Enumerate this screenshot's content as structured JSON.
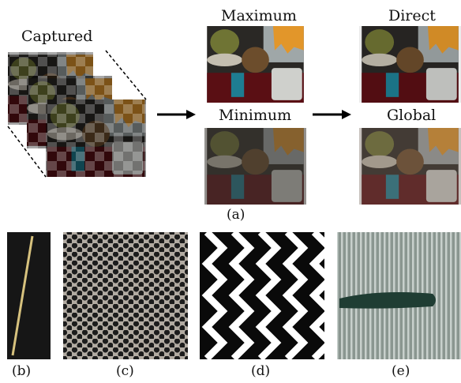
{
  "figure": {
    "top": {
      "captured_label": "Captured",
      "maximum_label": "Maximum",
      "minimum_label": "Minimum",
      "direct_label": "Direct",
      "global_label": "Global",
      "caption": "(a)"
    },
    "bottom": {
      "captions": [
        "(b)",
        "(c)",
        "(d)",
        "(e)"
      ]
    }
  }
}
